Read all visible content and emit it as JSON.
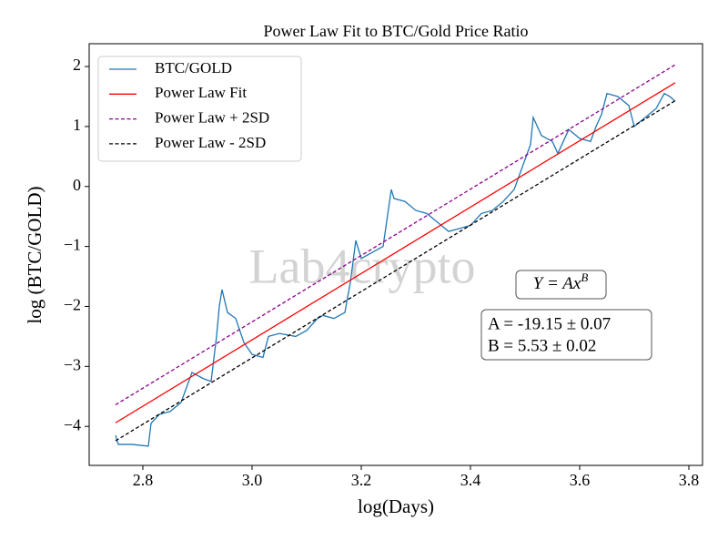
{
  "chart_data": {
    "type": "line",
    "title": "Power Law Fit to BTC/Gold Price Ratio",
    "xlabel": "log(Days)",
    "ylabel": "log (BTC/GOLD)",
    "xlim": [
      2.7017,
      3.825
    ],
    "ylim": [
      -4.65,
      2.38
    ],
    "xticks": [
      2.8,
      {
        "value": 3,
        "label": "3.0"
      },
      3.2,
      3.4,
      3.6,
      3.8
    ],
    "yticks": [
      {
        "value": -4,
        "label": "−4"
      },
      {
        "value": -3,
        "label": "−3"
      },
      {
        "value": -2,
        "label": "−2"
      },
      {
        "value": -1,
        "label": "−1"
      },
      0,
      1,
      2
    ],
    "legend": "upper left",
    "watermark": "Lab4crypto",
    "annotations": [
      {
        "text": "Y = Ax",
        "superscript": "B"
      },
      {
        "text": "A = -19.15 ± 0.07"
      },
      {
        "text": "B = 5.53 ± 0.02"
      }
    ],
    "series": [
      {
        "name": "BTC/GOLD",
        "color": "#1f77b4",
        "linestyle": "solid",
        "x": [
          2.75,
          2.755,
          2.78,
          2.81,
          2.815,
          2.83,
          2.85,
          2.87,
          2.88,
          2.89,
          2.91,
          2.925,
          2.935,
          2.94,
          2.945,
          2.955,
          2.97,
          2.985,
          3.0,
          3.02,
          3.03,
          3.05,
          3.08,
          3.1,
          3.12,
          3.13,
          3.15,
          3.17,
          3.18,
          3.19,
          3.2,
          3.22,
          3.24,
          3.255,
          3.26,
          3.28,
          3.3,
          3.32,
          3.34,
          3.36,
          3.38,
          3.4,
          3.42,
          3.44,
          3.46,
          3.48,
          3.5,
          3.51,
          3.515,
          3.53,
          3.55,
          3.56,
          3.58,
          3.6,
          3.62,
          3.63,
          3.64,
          3.65,
          3.67,
          3.69,
          3.7,
          3.72,
          3.74,
          3.755,
          3.765,
          3.775
        ],
        "values": [
          -4.15,
          -4.3,
          -4.3,
          -4.33,
          -3.95,
          -3.8,
          -3.75,
          -3.6,
          -3.35,
          -3.1,
          -3.2,
          -3.25,
          -2.5,
          -2.0,
          -1.72,
          -2.1,
          -2.2,
          -2.6,
          -2.8,
          -2.85,
          -2.5,
          -2.45,
          -2.5,
          -2.4,
          -2.2,
          -2.15,
          -2.2,
          -2.1,
          -1.6,
          -0.9,
          -1.2,
          -1.1,
          -1.0,
          -0.05,
          -0.2,
          -0.25,
          -0.4,
          -0.45,
          -0.6,
          -0.75,
          -0.7,
          -0.65,
          -0.45,
          -0.4,
          -0.25,
          -0.05,
          0.45,
          0.7,
          1.15,
          0.85,
          0.75,
          0.55,
          0.95,
          0.8,
          0.75,
          1.0,
          1.2,
          1.55,
          1.5,
          1.35,
          1.0,
          1.15,
          1.3,
          1.55,
          1.5,
          1.42
        ]
      },
      {
        "name": "Power Law Fit",
        "color": "#ff0000",
        "linestyle": "solid",
        "x": [
          2.75,
          3.775
        ],
        "values": [
          -3.94,
          1.73
        ]
      },
      {
        "name": "Power Law + 2SD",
        "color": "#8b008b",
        "linestyle": "dashed",
        "x": [
          2.75,
          3.775
        ],
        "values": [
          -3.64,
          2.03
        ]
      },
      {
        "name": "Power Law - 2SD",
        "color": "#000000",
        "linestyle": "dashed",
        "x": [
          2.75,
          3.775
        ],
        "values": [
          -4.24,
          1.43
        ]
      }
    ]
  }
}
